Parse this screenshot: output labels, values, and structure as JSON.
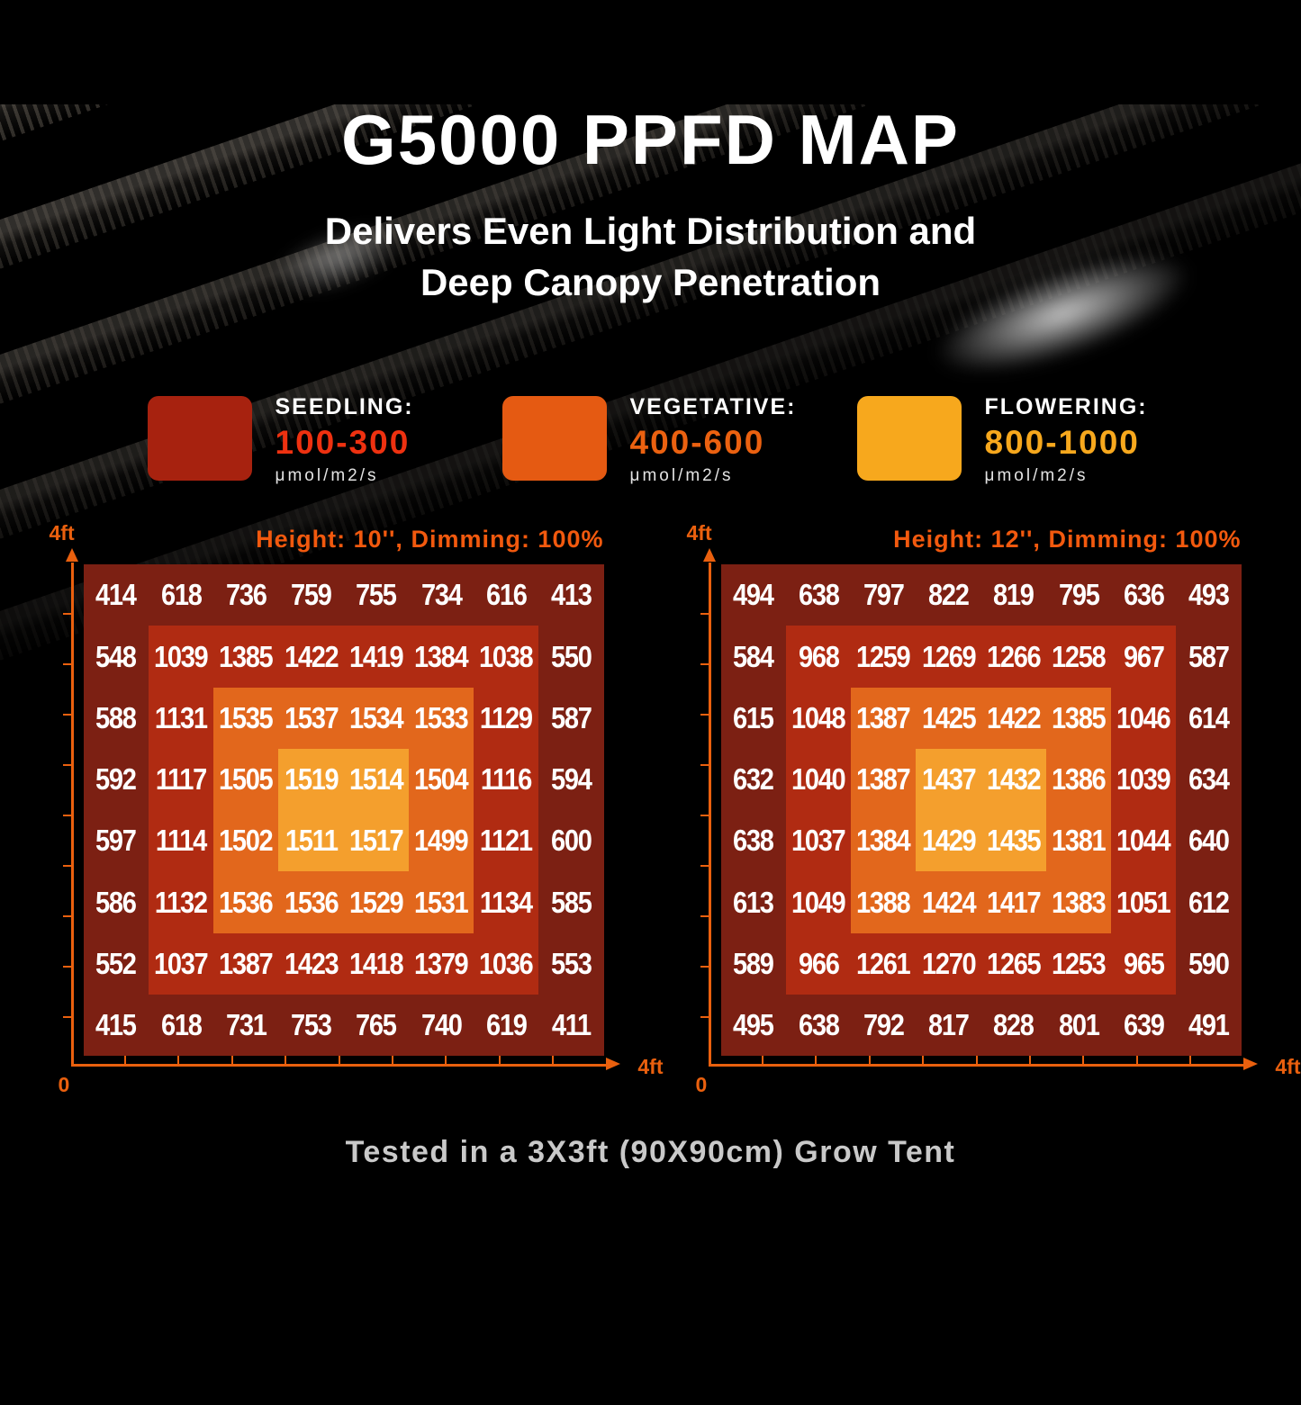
{
  "page": {
    "title": "G5000 PPFD MAP",
    "subtitle_line1": "Delivers Even Light Distribution and",
    "subtitle_line2": "Deep Canopy Penetration",
    "footer": "Tested in a 3X3ft (90X90cm) Grow Tent"
  },
  "colors": {
    "accent_orange": "#EA600E",
    "header_orange": "#F2590E",
    "title_white": "#FFFFFF",
    "footer_gray": "#C9C9C9"
  },
  "legend": {
    "items": [
      {
        "label": "SEEDLING:",
        "range": "100-300",
        "unit": "μmol/m2/s",
        "swatch_color": "#A7220F",
        "range_color": "#EE3110"
      },
      {
        "label": "VEGETATIVE:",
        "range": "400-600",
        "unit": "μmol/m2/s",
        "swatch_color": "#E55A12",
        "range_color": "#EB6110"
      },
      {
        "label": "FLOWERING:",
        "range": "800-1000",
        "unit": "μmol/m2/s",
        "swatch_color": "#F7A81D",
        "range_color": "#F7A81D"
      }
    ]
  },
  "chart_data": [
    {
      "type": "heatmap",
      "title": "Height: 10'', Dimming: 100%",
      "x_axis_start": "0",
      "x_axis_end": "4ft",
      "y_axis_end": "4ft",
      "axis_range_ft": [
        0,
        4
      ],
      "rows": [
        [
          414,
          618,
          736,
          759,
          755,
          734,
          616,
          413
        ],
        [
          548,
          1039,
          1385,
          1422,
          1419,
          1384,
          1038,
          550
        ],
        [
          588,
          1131,
          1535,
          1537,
          1534,
          1533,
          1129,
          587
        ],
        [
          592,
          1117,
          1505,
          1519,
          1514,
          1504,
          1116,
          594
        ],
        [
          597,
          1114,
          1502,
          1511,
          1517,
          1499,
          1121,
          600
        ],
        [
          586,
          1132,
          1536,
          1536,
          1529,
          1531,
          1134,
          585
        ],
        [
          552,
          1037,
          1387,
          1423,
          1418,
          1379,
          1036,
          553
        ],
        [
          415,
          618,
          731,
          753,
          765,
          740,
          619,
          411
        ]
      ],
      "zone_colors": {
        "outer": "#7C2013",
        "ring2": "#B02B12",
        "ring3": "#E2671C",
        "center": "#F49F2D"
      }
    },
    {
      "type": "heatmap",
      "title": "Height: 12'', Dimming: 100%",
      "x_axis_start": "0",
      "x_axis_end": "4ft",
      "y_axis_end": "4ft",
      "axis_range_ft": [
        0,
        4
      ],
      "rows": [
        [
          494,
          638,
          797,
          822,
          819,
          795,
          636,
          493
        ],
        [
          584,
          968,
          1259,
          1269,
          1266,
          1258,
          967,
          587
        ],
        [
          615,
          1048,
          1387,
          1425,
          1422,
          1385,
          1046,
          614
        ],
        [
          632,
          1040,
          1387,
          1437,
          1432,
          1386,
          1039,
          634
        ],
        [
          638,
          1037,
          1384,
          1429,
          1435,
          1381,
          1044,
          640
        ],
        [
          613,
          1049,
          1388,
          1424,
          1417,
          1383,
          1051,
          612
        ],
        [
          589,
          966,
          1261,
          1270,
          1265,
          1253,
          965,
          590
        ],
        [
          495,
          638,
          792,
          817,
          828,
          801,
          639,
          491
        ]
      ],
      "zone_colors": {
        "outer": "#7C2013",
        "ring2": "#B02B12",
        "ring3": "#E2671C",
        "center": "#F49F2D"
      }
    }
  ]
}
